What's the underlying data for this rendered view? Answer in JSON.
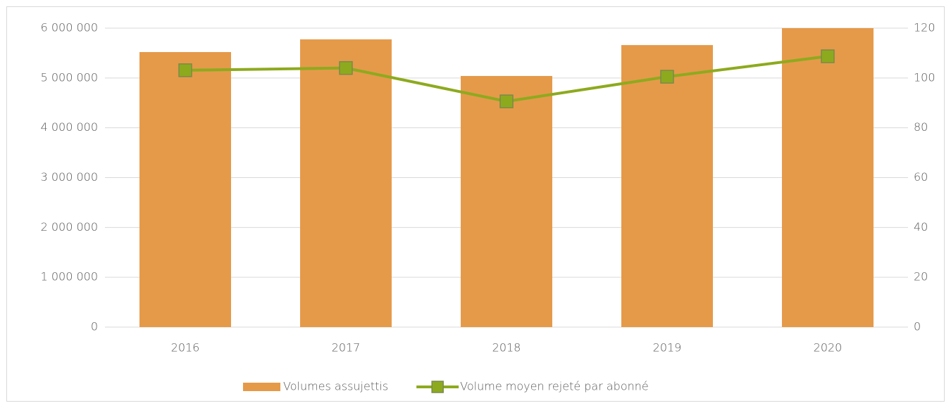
{
  "chart_data": {
    "type": "bar_line",
    "categories": [
      "2016",
      "2017",
      "2018",
      "2019",
      "2020"
    ],
    "series": [
      {
        "name": "Volumes assujettis",
        "color": "#e59a4a",
        "values": [
          5520000,
          5775000,
          5040000,
          5660000,
          6000000
        ]
      },
      {
        "name": "Volume moyen rejeté par abonné",
        "color": "#8daa1e",
        "axis": "y2",
        "values": [
          103.1,
          104,
          90.6,
          100.5,
          108.7
        ]
      }
    ],
    "ylim": [
      0,
      6000000
    ],
    "yticks": [
      0,
      {
        "value": 1000000,
        "label": "1 000 000"
      },
      {
        "value": 2000000,
        "label": "2 000 000"
      },
      {
        "value": 3000000,
        "label": "3 000 000"
      },
      {
        "value": 4000000,
        "label": "4 000 000"
      },
      {
        "value": 5000000,
        "label": "5 000 000"
      },
      {
        "value": 6000000,
        "label": "6 000 000"
      }
    ],
    "y2lim": [
      0,
      120
    ],
    "y2ticks": [
      0,
      20,
      40,
      60,
      80,
      100,
      120
    ],
    "grid": true,
    "legend": "bottom"
  }
}
